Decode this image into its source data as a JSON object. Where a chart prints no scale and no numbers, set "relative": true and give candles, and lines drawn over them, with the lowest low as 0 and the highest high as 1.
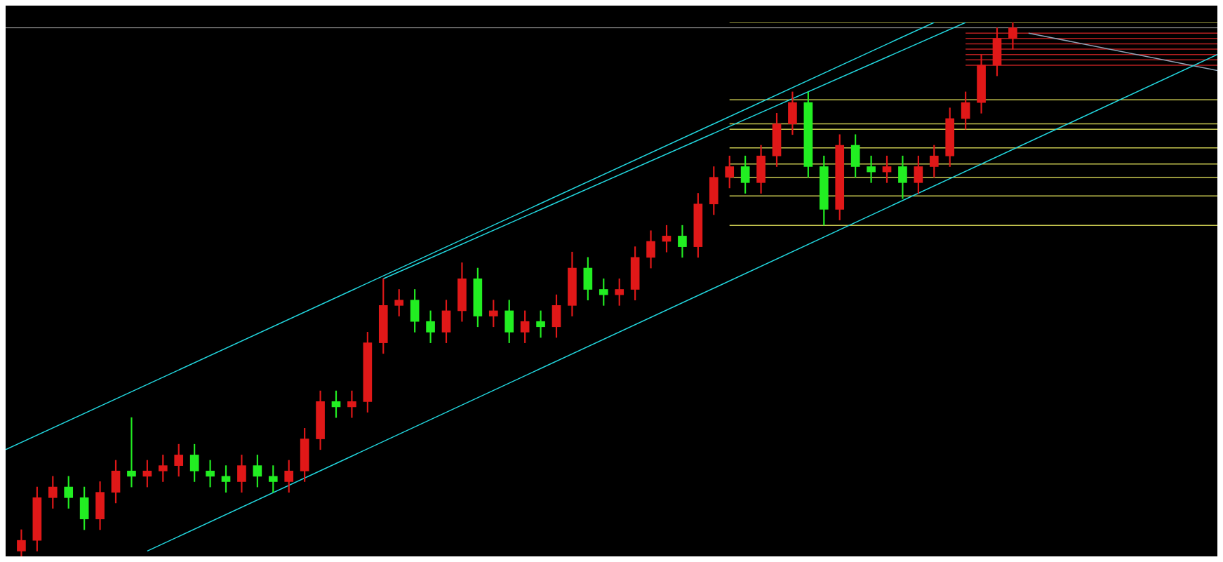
{
  "chart_data": {
    "type": "candlestick",
    "relative": true,
    "tick_labels": false,
    "categories": [
      null,
      null,
      null,
      null,
      null,
      null,
      null,
      null,
      null,
      null,
      null,
      null,
      null,
      null,
      null,
      null,
      null,
      null,
      null,
      null,
      null,
      null,
      null,
      null,
      null,
      null,
      null,
      null,
      null,
      null,
      null,
      null,
      null,
      null,
      null,
      null,
      null,
      null,
      null,
      null,
      null,
      null,
      null,
      null,
      null,
      null,
      null,
      null,
      null,
      null,
      null,
      null,
      null,
      null,
      null,
      null,
      null,
      null,
      null,
      null,
      null,
      null,
      null,
      null,
      null,
      null,
      null,
      null,
      null,
      null,
      null,
      null,
      null,
      null,
      null,
      null,
      null,
      null
    ],
    "ohlc": [
      null,
      [
        0.01,
        0.05,
        0,
        0.03
      ],
      [
        0.03,
        0.13,
        0.01,
        0.11
      ],
      [
        0.11,
        0.15,
        0.09,
        0.13
      ],
      [
        0.13,
        0.15,
        0.09,
        0.11
      ],
      [
        0.11,
        0.13,
        0.05,
        0.07
      ],
      [
        0.07,
        0.14,
        0.05,
        0.12
      ],
      [
        0.12,
        0.18,
        0.1,
        0.16
      ],
      [
        0.16,
        0.26,
        0.13,
        0.15
      ],
      [
        0.15,
        0.18,
        0.13,
        0.16
      ],
      [
        0.16,
        0.19,
        0.14,
        0.17
      ],
      [
        0.17,
        0.21,
        0.15,
        0.19
      ],
      [
        0.19,
        0.21,
        0.14,
        0.16
      ],
      [
        0.16,
        0.18,
        0.13,
        0.15
      ],
      [
        0.15,
        0.17,
        0.12,
        0.14
      ],
      [
        0.14,
        0.19,
        0.12,
        0.17
      ],
      [
        0.17,
        0.19,
        0.13,
        0.15
      ],
      [
        0.15,
        0.17,
        0.12,
        0.14
      ],
      [
        0.14,
        0.18,
        0.12,
        0.16
      ],
      [
        0.16,
        0.24,
        0.14,
        0.22
      ],
      [
        0.22,
        0.31,
        0.2,
        0.29
      ],
      [
        0.29,
        0.31,
        0.26,
        0.28
      ],
      [
        0.28,
        0.31,
        0.26,
        0.29
      ],
      [
        0.29,
        0.42,
        0.27,
        0.4
      ],
      [
        0.4,
        0.52,
        0.38,
        0.47
      ],
      [
        0.47,
        0.5,
        0.45,
        0.48
      ],
      [
        0.48,
        0.5,
        0.42,
        0.44
      ],
      [
        0.44,
        0.46,
        0.4,
        0.42
      ],
      [
        0.42,
        0.48,
        0.4,
        0.46
      ],
      [
        0.46,
        0.55,
        0.44,
        0.52
      ],
      [
        0.52,
        0.54,
        0.43,
        0.45
      ],
      [
        0.45,
        0.48,
        0.43,
        0.46
      ],
      [
        0.46,
        0.48,
        0.4,
        0.42
      ],
      [
        0.42,
        0.46,
        0.4,
        0.44
      ],
      [
        0.44,
        0.46,
        0.41,
        0.43
      ],
      [
        0.43,
        0.49,
        0.41,
        0.47
      ],
      [
        0.47,
        0.57,
        0.45,
        0.54
      ],
      [
        0.54,
        0.56,
        0.48,
        0.5
      ],
      [
        0.5,
        0.52,
        0.47,
        0.49
      ],
      [
        0.49,
        0.52,
        0.47,
        0.5
      ],
      [
        0.5,
        0.58,
        0.48,
        0.56
      ],
      [
        0.56,
        0.61,
        0.54,
        0.59
      ],
      [
        0.59,
        0.62,
        0.57,
        0.6
      ],
      [
        0.6,
        0.62,
        0.56,
        0.58
      ],
      [
        0.58,
        0.68,
        0.56,
        0.66
      ],
      [
        0.66,
        0.73,
        0.64,
        0.71
      ],
      [
        0.71,
        0.75,
        0.69,
        0.73
      ],
      [
        0.73,
        0.75,
        0.68,
        0.7
      ],
      [
        0.7,
        0.77,
        0.68,
        0.75
      ],
      [
        0.75,
        0.83,
        0.73,
        0.81
      ],
      [
        0.81,
        0.87,
        0.79,
        0.85
      ],
      [
        0.85,
        0.87,
        0.71,
        0.73
      ],
      [
        0.73,
        0.75,
        0.62,
        0.65
      ],
      [
        0.65,
        0.79,
        0.63,
        0.77
      ],
      [
        0.77,
        0.79,
        0.71,
        0.73
      ],
      [
        0.73,
        0.75,
        0.7,
        0.72
      ],
      [
        0.72,
        0.75,
        0.7,
        0.73
      ],
      [
        0.73,
        0.75,
        0.67,
        0.7
      ],
      [
        0.7,
        0.75,
        0.68,
        0.73
      ],
      [
        0.73,
        0.77,
        0.71,
        0.75
      ],
      [
        0.75,
        0.84,
        0.73,
        0.82
      ],
      [
        0.82,
        0.87,
        0.8,
        0.85
      ],
      [
        0.85,
        0.94,
        0.83,
        0.92
      ],
      [
        0.92,
        0.99,
        0.9,
        0.97
      ],
      [
        0.97,
        1,
        0.95,
        0.99
      ],
      null,
      null,
      null,
      null,
      null,
      null,
      null,
      null,
      null,
      null,
      null,
      null,
      null
    ],
    "colors": [
      null,
      "#e01818",
      "#e01818",
      "#e01818",
      "#22ee22",
      "#22ee22",
      "#e01818",
      "#e01818",
      "#22ee22",
      "#e01818",
      "#e01818",
      "#e01818",
      "#22ee22",
      "#22ee22",
      "#22ee22",
      "#e01818",
      "#22ee22",
      "#22ee22",
      "#e01818",
      "#e01818",
      "#e01818",
      "#22ee22",
      "#e01818",
      "#e01818",
      "#e01818",
      "#e01818",
      "#22ee22",
      "#22ee22",
      "#e01818",
      "#e01818",
      "#22ee22",
      "#e01818",
      "#22ee22",
      "#e01818",
      "#22ee22",
      "#e01818",
      "#e01818",
      "#22ee22",
      "#22ee22",
      "#e01818",
      "#e01818",
      "#e01818",
      "#e01818",
      "#22ee22",
      "#e01818",
      "#e01818",
      "#e01818",
      "#22ee22",
      "#e01818",
      "#e01818",
      "#e01818",
      "#22ee22",
      "#22ee22",
      "#e01818",
      "#22ee22",
      "#22ee22",
      "#e01818",
      "#22ee22",
      "#e01818",
      "#e01818",
      "#e01818",
      "#e01818",
      "#e01818",
      "#e01818",
      "#e01818",
      null,
      null,
      null,
      null,
      null,
      null,
      null,
      null,
      null,
      null,
      null,
      null,
      null
    ],
    "series": [
      {
        "type": "line",
        "color": "#22d8e0",
        "values": [
          0.2,
          null,
          null,
          null,
          null,
          null,
          null,
          null,
          null,
          null,
          null,
          null,
          null,
          null,
          null,
          null,
          null,
          null,
          null,
          null,
          null,
          null,
          null,
          null,
          null,
          null,
          null,
          null,
          null,
          null,
          null,
          null,
          null,
          null,
          null,
          null,
          null,
          null,
          null,
          null,
          null,
          null,
          null,
          null,
          null,
          null,
          null,
          null,
          null,
          null,
          null,
          null,
          null,
          null,
          null,
          null,
          null,
          null,
          null,
          1,
          null,
          null,
          null,
          null,
          null,
          null,
          null,
          null,
          null,
          null,
          null,
          null,
          null,
          null,
          null,
          null,
          null,
          null
        ]
      },
      {
        "type": "line",
        "color": "#22d8e0",
        "values": [
          null,
          null,
          null,
          null,
          null,
          null,
          null,
          null,
          null,
          null,
          null,
          null,
          null,
          null,
          null,
          null,
          null,
          null,
          null,
          null,
          null,
          null,
          null,
          null,
          0.52,
          null,
          null,
          null,
          null,
          null,
          null,
          null,
          null,
          null,
          null,
          null,
          null,
          null,
          null,
          null,
          null,
          null,
          null,
          null,
          null,
          null,
          null,
          null,
          null,
          null,
          null,
          null,
          null,
          null,
          null,
          null,
          null,
          null,
          null,
          null,
          null,
          1,
          null,
          null,
          null,
          null,
          null,
          null,
          null,
          null,
          null,
          null,
          null,
          null,
          null,
          null,
          null,
          null
        ]
      },
      {
        "type": "line",
        "color": "#22d8e0",
        "values": [
          null,
          null,
          null,
          null,
          null,
          null,
          null,
          null,
          null,
          0.01,
          null,
          null,
          null,
          null,
          null,
          null,
          null,
          null,
          null,
          null,
          null,
          null,
          null,
          null,
          null,
          null,
          null,
          null,
          null,
          null,
          null,
          null,
          null,
          null,
          null,
          null,
          null,
          null,
          null,
          null,
          null,
          null,
          null,
          null,
          null,
          null,
          null,
          null,
          null,
          null,
          null,
          null,
          null,
          null,
          null,
          null,
          null,
          null,
          null,
          null,
          null,
          null,
          null,
          null,
          null,
          null,
          null,
          null,
          null,
          null,
          null,
          null,
          null,
          null,
          null,
          null,
          null,
          0.94
        ]
      },
      {
        "type": "line",
        "color": "#8fa4b8",
        "values": [
          null,
          null,
          null,
          null,
          null,
          null,
          null,
          null,
          null,
          null,
          null,
          null,
          null,
          null,
          null,
          null,
          null,
          null,
          null,
          null,
          null,
          null,
          null,
          null,
          null,
          null,
          null,
          null,
          null,
          null,
          null,
          null,
          null,
          null,
          null,
          null,
          null,
          null,
          null,
          null,
          null,
          null,
          null,
          null,
          null,
          null,
          null,
          null,
          null,
          null,
          null,
          null,
          null,
          null,
          null,
          null,
          null,
          null,
          null,
          null,
          null,
          null,
          null,
          null,
          null,
          0.98,
          null,
          null,
          null,
          null,
          null,
          null,
          null,
          null,
          null,
          null,
          null,
          0.91
        ]
      },
      {
        "type": "line",
        "color": "#c8c850",
        "values": [
          null,
          null,
          null,
          null,
          null,
          null,
          null,
          null,
          null,
          null,
          null,
          null,
          null,
          null,
          null,
          null,
          null,
          null,
          null,
          null,
          null,
          null,
          null,
          null,
          null,
          null,
          null,
          null,
          null,
          null,
          null,
          null,
          null,
          null,
          null,
          null,
          null,
          null,
          null,
          null,
          null,
          null,
          null,
          null,
          null,
          null,
          1,
          null,
          null,
          null,
          null,
          null,
          null,
          null,
          null,
          null,
          null,
          null,
          null,
          null,
          null,
          null,
          null,
          null,
          null,
          null,
          null,
          null,
          null,
          null,
          null,
          null,
          null,
          null,
          null,
          null,
          null,
          1
        ]
      },
      {
        "type": "line",
        "color": "#c8c850",
        "values": [
          null,
          null,
          null,
          null,
          null,
          null,
          null,
          null,
          null,
          null,
          null,
          null,
          null,
          null,
          null,
          null,
          null,
          null,
          null,
          null,
          null,
          null,
          null,
          null,
          null,
          null,
          null,
          null,
          null,
          null,
          null,
          null,
          null,
          null,
          null,
          null,
          null,
          null,
          null,
          null,
          null,
          null,
          null,
          null,
          null,
          null,
          0.855,
          null,
          null,
          null,
          null,
          null,
          null,
          null,
          null,
          null,
          null,
          null,
          null,
          null,
          null,
          null,
          null,
          null,
          null,
          null,
          null,
          null,
          null,
          null,
          null,
          null,
          null,
          null,
          null,
          null,
          null,
          0.855
        ]
      },
      {
        "type": "line",
        "color": "#c8c850",
        "values": [
          null,
          null,
          null,
          null,
          null,
          null,
          null,
          null,
          null,
          null,
          null,
          null,
          null,
          null,
          null,
          null,
          null,
          null,
          null,
          null,
          null,
          null,
          null,
          null,
          null,
          null,
          null,
          null,
          null,
          null,
          null,
          null,
          null,
          null,
          null,
          null,
          null,
          null,
          null,
          null,
          null,
          null,
          null,
          null,
          null,
          null,
          0.81,
          null,
          null,
          null,
          null,
          null,
          null,
          null,
          null,
          null,
          null,
          null,
          null,
          null,
          null,
          null,
          null,
          null,
          null,
          null,
          null,
          null,
          null,
          null,
          null,
          null,
          null,
          null,
          null,
          null,
          null,
          0.81
        ]
      },
      {
        "type": "line",
        "color": "#c8c850",
        "values": [
          null,
          null,
          null,
          null,
          null,
          null,
          null,
          null,
          null,
          null,
          null,
          null,
          null,
          null,
          null,
          null,
          null,
          null,
          null,
          null,
          null,
          null,
          null,
          null,
          null,
          null,
          null,
          null,
          null,
          null,
          null,
          null,
          null,
          null,
          null,
          null,
          null,
          null,
          null,
          null,
          null,
          null,
          null,
          null,
          null,
          null,
          0.8,
          null,
          null,
          null,
          null,
          null,
          null,
          null,
          null,
          null,
          null,
          null,
          null,
          null,
          null,
          null,
          null,
          null,
          null,
          null,
          null,
          null,
          null,
          null,
          null,
          null,
          null,
          null,
          null,
          null,
          null,
          0.8
        ]
      },
      {
        "type": "line",
        "color": "#c8c850",
        "values": [
          null,
          null,
          null,
          null,
          null,
          null,
          null,
          null,
          null,
          null,
          null,
          null,
          null,
          null,
          null,
          null,
          null,
          null,
          null,
          null,
          null,
          null,
          null,
          null,
          null,
          null,
          null,
          null,
          null,
          null,
          null,
          null,
          null,
          null,
          null,
          null,
          null,
          null,
          null,
          null,
          null,
          null,
          null,
          null,
          null,
          null,
          0.765,
          null,
          null,
          null,
          null,
          null,
          null,
          null,
          null,
          null,
          null,
          null,
          null,
          null,
          null,
          null,
          null,
          null,
          null,
          null,
          null,
          null,
          null,
          null,
          null,
          null,
          null,
          null,
          null,
          null,
          null,
          0.765
        ]
      },
      {
        "type": "line",
        "color": "#c8c850",
        "values": [
          null,
          null,
          null,
          null,
          null,
          null,
          null,
          null,
          null,
          null,
          null,
          null,
          null,
          null,
          null,
          null,
          null,
          null,
          null,
          null,
          null,
          null,
          null,
          null,
          null,
          null,
          null,
          null,
          null,
          null,
          null,
          null,
          null,
          null,
          null,
          null,
          null,
          null,
          null,
          null,
          null,
          null,
          null,
          null,
          null,
          null,
          0.735,
          null,
          null,
          null,
          null,
          null,
          null,
          null,
          null,
          null,
          null,
          null,
          null,
          null,
          null,
          null,
          null,
          null,
          null,
          null,
          null,
          null,
          null,
          null,
          null,
          null,
          null,
          null,
          null,
          null,
          null,
          0.735
        ]
      },
      {
        "type": "line",
        "color": "#c8c850",
        "values": [
          null,
          null,
          null,
          null,
          null,
          null,
          null,
          null,
          null,
          null,
          null,
          null,
          null,
          null,
          null,
          null,
          null,
          null,
          null,
          null,
          null,
          null,
          null,
          null,
          null,
          null,
          null,
          null,
          null,
          null,
          null,
          null,
          null,
          null,
          null,
          null,
          null,
          null,
          null,
          null,
          null,
          null,
          null,
          null,
          null,
          null,
          0.71,
          null,
          null,
          null,
          null,
          null,
          null,
          null,
          null,
          null,
          null,
          null,
          null,
          null,
          null,
          null,
          null,
          null,
          null,
          null,
          null,
          null,
          null,
          null,
          null,
          null,
          null,
          null,
          null,
          null,
          null,
          0.71
        ]
      },
      {
        "type": "line",
        "color": "#c8c850",
        "values": [
          null,
          null,
          null,
          null,
          null,
          null,
          null,
          null,
          null,
          null,
          null,
          null,
          null,
          null,
          null,
          null,
          null,
          null,
          null,
          null,
          null,
          null,
          null,
          null,
          null,
          null,
          null,
          null,
          null,
          null,
          null,
          null,
          null,
          null,
          null,
          null,
          null,
          null,
          null,
          null,
          null,
          null,
          null,
          null,
          null,
          null,
          0.675,
          null,
          null,
          null,
          null,
          null,
          null,
          null,
          null,
          null,
          null,
          null,
          null,
          null,
          null,
          null,
          null,
          null,
          null,
          null,
          null,
          null,
          null,
          null,
          null,
          null,
          null,
          null,
          null,
          null,
          null,
          0.675
        ]
      },
      {
        "type": "line",
        "color": "#c8c850",
        "values": [
          null,
          null,
          null,
          null,
          null,
          null,
          null,
          null,
          null,
          null,
          null,
          null,
          null,
          null,
          null,
          null,
          null,
          null,
          null,
          null,
          null,
          null,
          null,
          null,
          null,
          null,
          null,
          null,
          null,
          null,
          null,
          null,
          null,
          null,
          null,
          null,
          null,
          null,
          null,
          null,
          null,
          null,
          null,
          null,
          null,
          null,
          0.62,
          null,
          null,
          null,
          null,
          null,
          null,
          null,
          null,
          null,
          null,
          null,
          null,
          null,
          null,
          null,
          null,
          null,
          null,
          null,
          null,
          null,
          null,
          null,
          null,
          null,
          null,
          null,
          null,
          null,
          null,
          0.62
        ]
      },
      {
        "type": "line",
        "color": "#b82020",
        "values": [
          null,
          null,
          null,
          null,
          null,
          null,
          null,
          null,
          null,
          null,
          null,
          null,
          null,
          null,
          null,
          null,
          null,
          null,
          null,
          null,
          null,
          null,
          null,
          null,
          null,
          null,
          null,
          null,
          null,
          null,
          null,
          null,
          null,
          null,
          null,
          null,
          null,
          null,
          null,
          null,
          null,
          null,
          null,
          null,
          null,
          null,
          null,
          null,
          null,
          null,
          null,
          null,
          null,
          null,
          null,
          null,
          null,
          null,
          null,
          null,
          null,
          0.98,
          null,
          null,
          null,
          null,
          null,
          null,
          null,
          null,
          null,
          null,
          null,
          null,
          null,
          null,
          null,
          0.98
        ]
      },
      {
        "type": "line",
        "color": "#b82020",
        "values": [
          null,
          null,
          null,
          null,
          null,
          null,
          null,
          null,
          null,
          null,
          null,
          null,
          null,
          null,
          null,
          null,
          null,
          null,
          null,
          null,
          null,
          null,
          null,
          null,
          null,
          null,
          null,
          null,
          null,
          null,
          null,
          null,
          null,
          null,
          null,
          null,
          null,
          null,
          null,
          null,
          null,
          null,
          null,
          null,
          null,
          null,
          null,
          null,
          null,
          null,
          null,
          null,
          null,
          null,
          null,
          null,
          null,
          null,
          null,
          null,
          null,
          0.97,
          null,
          null,
          null,
          null,
          null,
          null,
          null,
          null,
          null,
          null,
          null,
          null,
          null,
          null,
          null,
          0.97
        ]
      },
      {
        "type": "line",
        "color": "#b82020",
        "values": [
          null,
          null,
          null,
          null,
          null,
          null,
          null,
          null,
          null,
          null,
          null,
          null,
          null,
          null,
          null,
          null,
          null,
          null,
          null,
          null,
          null,
          null,
          null,
          null,
          null,
          null,
          null,
          null,
          null,
          null,
          null,
          null,
          null,
          null,
          null,
          null,
          null,
          null,
          null,
          null,
          null,
          null,
          null,
          null,
          null,
          null,
          null,
          null,
          null,
          null,
          null,
          null,
          null,
          null,
          null,
          null,
          null,
          null,
          null,
          null,
          null,
          0.96,
          null,
          null,
          null,
          null,
          null,
          null,
          null,
          null,
          null,
          null,
          null,
          null,
          null,
          null,
          null,
          0.96
        ]
      },
      {
        "type": "line",
        "color": "#b82020",
        "values": [
          null,
          null,
          null,
          null,
          null,
          null,
          null,
          null,
          null,
          null,
          null,
          null,
          null,
          null,
          null,
          null,
          null,
          null,
          null,
          null,
          null,
          null,
          null,
          null,
          null,
          null,
          null,
          null,
          null,
          null,
          null,
          null,
          null,
          null,
          null,
          null,
          null,
          null,
          null,
          null,
          null,
          null,
          null,
          null,
          null,
          null,
          null,
          null,
          null,
          null,
          null,
          null,
          null,
          null,
          null,
          null,
          null,
          null,
          null,
          null,
          null,
          0.95,
          null,
          null,
          null,
          null,
          null,
          null,
          null,
          null,
          null,
          null,
          null,
          null,
          null,
          null,
          null,
          0.95
        ]
      },
      {
        "type": "line",
        "color": "#b82020",
        "values": [
          null,
          null,
          null,
          null,
          null,
          null,
          null,
          null,
          null,
          null,
          null,
          null,
          null,
          null,
          null,
          null,
          null,
          null,
          null,
          null,
          null,
          null,
          null,
          null,
          null,
          null,
          null,
          null,
          null,
          null,
          null,
          null,
          null,
          null,
          null,
          null,
          null,
          null,
          null,
          null,
          null,
          null,
          null,
          null,
          null,
          null,
          null,
          null,
          null,
          null,
          null,
          null,
          null,
          null,
          null,
          null,
          null,
          null,
          null,
          null,
          null,
          0.94,
          null,
          null,
          null,
          null,
          null,
          null,
          null,
          null,
          null,
          null,
          null,
          null,
          null,
          null,
          null,
          0.94
        ]
      },
      {
        "type": "line",
        "color": "#b82020",
        "values": [
          null,
          null,
          null,
          null,
          null,
          null,
          null,
          null,
          null,
          null,
          null,
          null,
          null,
          null,
          null,
          null,
          null,
          null,
          null,
          null,
          null,
          null,
          null,
          null,
          null,
          null,
          null,
          null,
          null,
          null,
          null,
          null,
          null,
          null,
          null,
          null,
          null,
          null,
          null,
          null,
          null,
          null,
          null,
          null,
          null,
          null,
          null,
          null,
          null,
          null,
          null,
          null,
          null,
          null,
          null,
          null,
          null,
          null,
          null,
          null,
          null,
          0.93,
          null,
          null,
          null,
          null,
          null,
          null,
          null,
          null,
          null,
          null,
          null,
          null,
          null,
          null,
          null,
          0.93
        ]
      },
      {
        "type": "line",
        "color": "#b82020",
        "values": [
          null,
          null,
          null,
          null,
          null,
          null,
          null,
          null,
          null,
          null,
          null,
          null,
          null,
          null,
          null,
          null,
          null,
          null,
          null,
          null,
          null,
          null,
          null,
          null,
          null,
          null,
          null,
          null,
          null,
          null,
          null,
          null,
          null,
          null,
          null,
          null,
          null,
          null,
          null,
          null,
          null,
          null,
          null,
          null,
          null,
          null,
          null,
          null,
          null,
          null,
          null,
          null,
          null,
          null,
          null,
          null,
          null,
          null,
          null,
          null,
          null,
          0.92,
          null,
          null,
          null,
          null,
          null,
          null,
          null,
          null,
          null,
          null,
          null,
          null,
          null,
          null,
          null,
          0.92
        ]
      }
    ],
    "ref_lines": [
      {
        "axis": "y",
        "value": 0.99,
        "color": "#a0a0a0"
      }
    ]
  }
}
